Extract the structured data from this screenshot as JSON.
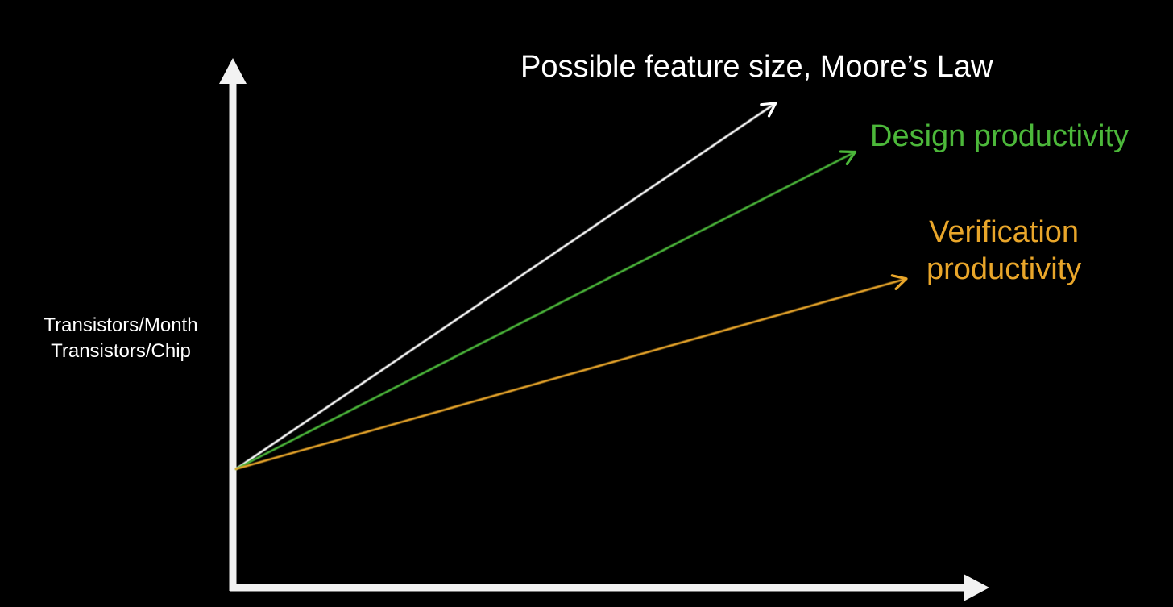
{
  "chart_data": {
    "type": "line",
    "title": "",
    "xlabel": "",
    "ylabel": [
      "Transistors/Month",
      "Transistors/Chip"
    ],
    "grid": false,
    "axes": "arrows",
    "series": [
      {
        "name": "Possible feature size, Moore’s Law",
        "label_lines": [
          "Possible feature size, Moore’s Law"
        ],
        "color": "#ffffff",
        "x": [
          0,
          0.95
        ],
        "y": [
          0.25,
          1.0
        ]
      },
      {
        "name": "Design productivity",
        "label_lines": [
          "Design productivity"
        ],
        "color": "#4cb83a",
        "x": [
          0,
          1.09
        ],
        "y": [
          0.25,
          0.9
        ]
      },
      {
        "name": "Verification productivity",
        "label_lines": [
          "Verification",
          "productivity"
        ],
        "color": "#e9a62a",
        "x": [
          0,
          1.18
        ],
        "y": [
          0.25,
          0.64
        ]
      }
    ]
  }
}
